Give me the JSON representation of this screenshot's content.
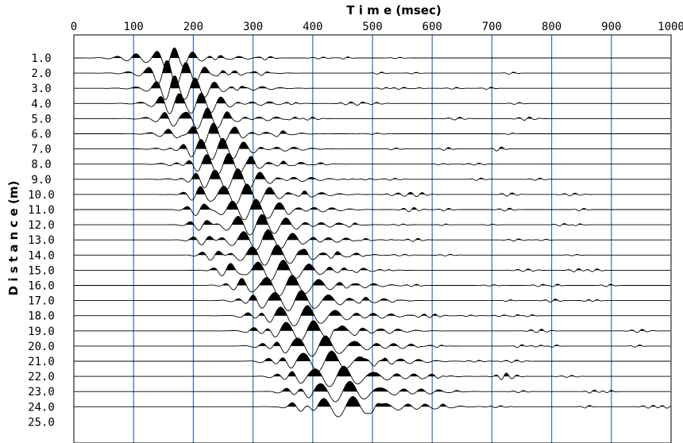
{
  "chart_data": {
    "type": "seismic-wiggle",
    "xlabel": "T i m e (msec)",
    "ylabel": "D i s t a n c e (m)",
    "xlim": [
      0,
      1000
    ],
    "x_ticks": [
      0,
      100,
      200,
      300,
      400,
      500,
      600,
      700,
      800,
      900,
      1000
    ],
    "x_tick_labels": [
      "0",
      "100",
      "200",
      "300",
      "400",
      "500",
      "600",
      "700",
      "800",
      "900",
      "1000"
    ],
    "y_tick_labels": [
      "1.0",
      "2.0",
      "3.0",
      "4.0",
      "5.0",
      "6.0",
      "7.0",
      "8.0",
      "9.0",
      "10.0",
      "11.0",
      "12.0",
      "13.0",
      "14.0",
      "15.0",
      "16.0",
      "17.0",
      "18.0",
      "19.0",
      "20.0",
      "21.0",
      "22.0",
      "23.0",
      "24.0",
      "25.0"
    ],
    "trace_distances_m": [
      1,
      2,
      3,
      4,
      5,
      6,
      7,
      8,
      9,
      10,
      11,
      12,
      13,
      14,
      15,
      16,
      17,
      18,
      19,
      20,
      21,
      22,
      23,
      24
    ],
    "direct_first_break_ms": [
      140,
      150,
      160,
      165,
      170,
      175,
      180,
      190,
      200,
      205,
      210,
      215,
      220,
      235,
      255,
      275,
      295,
      310,
      320,
      335,
      345,
      360,
      375,
      385
    ],
    "surface_wave_arrival_ms": [
      160,
      180,
      195,
      205,
      215,
      225,
      240,
      250,
      265,
      280,
      295,
      305,
      315,
      330,
      340,
      355,
      370,
      380,
      390,
      410,
      420,
      440,
      450,
      455
    ],
    "grid": {
      "vertical_lines_ms": [
        100,
        200,
        300,
        400,
        500,
        600,
        700,
        800,
        900
      ],
      "color": "#2f6fd0"
    },
    "fill": "positive-lobes-black",
    "trace_color": "#000000"
  }
}
